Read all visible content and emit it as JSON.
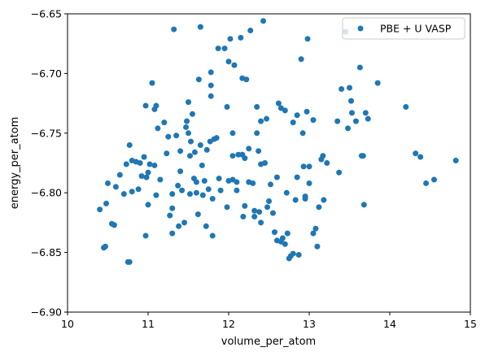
{
  "chart_data": {
    "type": "scatter",
    "title": "",
    "xlabel": "volume_per_atom",
    "ylabel": "energy_per_atom",
    "xlim": [
      10,
      15
    ],
    "ylim": [
      -6.9,
      -6.65
    ],
    "x_ticks": [
      "10",
      "11",
      "12",
      "13",
      "14",
      "15"
    ],
    "y_ticks": [
      "−6.90",
      "−6.85",
      "−6.80",
      "−6.75",
      "−6.70",
      "−6.65"
    ],
    "legend_position": "top-right",
    "grid": false,
    "series": [
      {
        "name": "PBE + U VASP",
        "color": "#1f77b4",
        "points": [
          [
            10.4,
            -6.814
          ],
          [
            10.45,
            -6.846
          ],
          [
            10.47,
            -6.845
          ],
          [
            10.48,
            -6.809
          ],
          [
            10.5,
            -6.792
          ],
          [
            10.55,
            -6.826
          ],
          [
            10.58,
            -6.827
          ],
          [
            10.6,
            -6.795
          ],
          [
            10.65,
            -6.785
          ],
          [
            10.7,
            -6.801
          ],
          [
            10.73,
            -6.776
          ],
          [
            10.75,
            -6.858
          ],
          [
            10.77,
            -6.858
          ],
          [
            10.77,
            -6.76
          ],
          [
            10.8,
            -6.799
          ],
          [
            10.8,
            -6.773
          ],
          [
            10.85,
            -6.774
          ],
          [
            10.88,
            -6.797
          ],
          [
            10.9,
            -6.775
          ],
          [
            10.92,
            -6.786
          ],
          [
            10.95,
            -6.77
          ],
          [
            10.97,
            -6.836
          ],
          [
            10.97,
            -6.727
          ],
          [
            10.98,
            -6.787
          ],
          [
            11.0,
            -6.81
          ],
          [
            11.0,
            -6.783
          ],
          [
            11.02,
            -6.776
          ],
          [
            11.05,
            -6.708
          ],
          [
            11.08,
            -6.73
          ],
          [
            11.08,
            -6.777
          ],
          [
            11.1,
            -6.727
          ],
          [
            11.1,
            -6.802
          ],
          [
            11.12,
            -6.746
          ],
          [
            11.15,
            -6.789
          ],
          [
            11.2,
            -6.741
          ],
          [
            11.23,
            -6.767
          ],
          [
            11.25,
            -6.753
          ],
          [
            11.27,
            -6.819
          ],
          [
            11.3,
            -6.834
          ],
          [
            11.3,
            -6.813
          ],
          [
            11.3,
            -6.801
          ],
          [
            11.32,
            -6.663
          ],
          [
            11.35,
            -6.752
          ],
          [
            11.37,
            -6.794
          ],
          [
            11.38,
            -6.828
          ],
          [
            11.4,
            -6.765
          ],
          [
            11.4,
            -6.782
          ],
          [
            11.42,
            -6.798
          ],
          [
            11.45,
            -6.825
          ],
          [
            11.47,
            -6.745
          ],
          [
            11.48,
            -6.74
          ],
          [
            11.5,
            -6.75
          ],
          [
            11.5,
            -6.724
          ],
          [
            11.52,
            -6.801
          ],
          [
            11.52,
            -6.769
          ],
          [
            11.53,
            -6.757
          ],
          [
            11.55,
            -6.734
          ],
          [
            11.57,
            -6.788
          ],
          [
            11.58,
            -6.766
          ],
          [
            11.6,
            -6.8
          ],
          [
            11.6,
            -6.791
          ],
          [
            11.62,
            -6.818
          ],
          [
            11.63,
            -6.705
          ],
          [
            11.65,
            -6.661
          ],
          [
            11.65,
            -6.76
          ],
          [
            11.67,
            -6.777
          ],
          [
            11.68,
            -6.802
          ],
          [
            11.7,
            -6.79
          ],
          [
            11.72,
            -6.828
          ],
          [
            11.73,
            -6.764
          ],
          [
            11.75,
            -6.797
          ],
          [
            11.77,
            -6.757
          ],
          [
            11.78,
            -6.719
          ],
          [
            11.78,
            -6.71
          ],
          [
            11.78,
            -6.699
          ],
          [
            11.8,
            -6.836
          ],
          [
            11.8,
            -6.805
          ],
          [
            11.82,
            -6.755
          ],
          [
            11.85,
            -6.754
          ],
          [
            11.87,
            -6.679
          ],
          [
            11.88,
            -6.788
          ],
          [
            11.9,
            -6.798
          ],
          [
            11.95,
            -6.679
          ],
          [
            11.98,
            -6.728
          ],
          [
            11.98,
            -6.812
          ],
          [
            12.0,
            -6.79
          ],
          [
            12.0,
            -6.69
          ],
          [
            12.02,
            -6.671
          ],
          [
            12.05,
            -6.789
          ],
          [
            12.05,
            -6.75
          ],
          [
            12.05,
            -6.769
          ],
          [
            12.07,
            -6.693
          ],
          [
            12.1,
            -6.791
          ],
          [
            12.1,
            -6.798
          ],
          [
            12.12,
            -6.768
          ],
          [
            12.15,
            -6.67
          ],
          [
            12.17,
            -6.704
          ],
          [
            12.17,
            -6.768
          ],
          [
            12.18,
            -6.82
          ],
          [
            12.2,
            -6.811
          ],
          [
            12.2,
            -6.771
          ],
          [
            12.22,
            -6.705
          ],
          [
            12.25,
            -6.763
          ],
          [
            12.25,
            -6.791
          ],
          [
            12.27,
            -6.664
          ],
          [
            12.3,
            -6.792
          ],
          [
            12.32,
            -6.815
          ],
          [
            12.32,
            -6.82
          ],
          [
            12.35,
            -6.728
          ],
          [
            12.35,
            -6.75
          ],
          [
            12.37,
            -6.765
          ],
          [
            12.38,
            -6.816
          ],
          [
            12.4,
            -6.74
          ],
          [
            12.4,
            -6.825
          ],
          [
            12.4,
            -6.776
          ],
          [
            12.43,
            -6.656
          ],
          [
            12.45,
            -6.775
          ],
          [
            12.47,
            -6.738
          ],
          [
            12.48,
            -6.812
          ],
          [
            12.5,
            -6.807
          ],
          [
            12.52,
            -6.793
          ],
          [
            12.55,
            -6.817
          ],
          [
            12.57,
            -6.833
          ],
          [
            12.6,
            -6.84
          ],
          [
            12.6,
            -6.787
          ],
          [
            12.62,
            -6.725
          ],
          [
            12.65,
            -6.841
          ],
          [
            12.65,
            -6.729
          ],
          [
            12.67,
            -6.838
          ],
          [
            12.7,
            -6.843
          ],
          [
            12.7,
            -6.731
          ],
          [
            12.72,
            -6.8
          ],
          [
            12.73,
            -6.834
          ],
          [
            12.75,
            -6.855
          ],
          [
            12.77,
            -6.853
          ],
          [
            12.8,
            -6.851
          ],
          [
            12.8,
            -6.741
          ],
          [
            12.83,
            -6.806
          ],
          [
            12.85,
            -6.735
          ],
          [
            12.85,
            -6.787
          ],
          [
            12.87,
            -6.852
          ],
          [
            12.9,
            -6.688
          ],
          [
            12.92,
            -6.75
          ],
          [
            12.93,
            -6.778
          ],
          [
            12.95,
            -6.803
          ],
          [
            12.95,
            -6.805
          ],
          [
            12.97,
            -6.732
          ],
          [
            12.98,
            -6.671
          ],
          [
            13.0,
            -6.778
          ],
          [
            13.0,
            -6.792
          ],
          [
            13.05,
            -6.739
          ],
          [
            13.05,
            -6.834
          ],
          [
            13.08,
            -6.83
          ],
          [
            13.1,
            -6.845
          ],
          [
            13.12,
            -6.812
          ],
          [
            13.15,
            -6.772
          ],
          [
            13.17,
            -6.769
          ],
          [
            13.18,
            -6.806
          ],
          [
            13.22,
            -6.775
          ],
          [
            13.35,
            -6.74
          ],
          [
            13.37,
            -6.783
          ],
          [
            13.4,
            -6.713
          ],
          [
            13.45,
            -6.665
          ],
          [
            13.48,
            -6.746
          ],
          [
            13.5,
            -6.712
          ],
          [
            13.52,
            -6.723
          ],
          [
            13.53,
            -6.733
          ],
          [
            13.58,
            -6.74
          ],
          [
            13.63,
            -6.695
          ],
          [
            13.65,
            -6.769
          ],
          [
            13.67,
            -6.769
          ],
          [
            13.68,
            -6.81
          ],
          [
            13.7,
            -6.733
          ],
          [
            13.73,
            -6.738
          ],
          [
            13.85,
            -6.708
          ],
          [
            14.2,
            -6.728
          ],
          [
            14.32,
            -6.767
          ],
          [
            14.38,
            -6.77
          ],
          [
            14.45,
            -6.792
          ],
          [
            14.55,
            -6.789
          ],
          [
            14.82,
            -6.773
          ]
        ]
      }
    ]
  }
}
